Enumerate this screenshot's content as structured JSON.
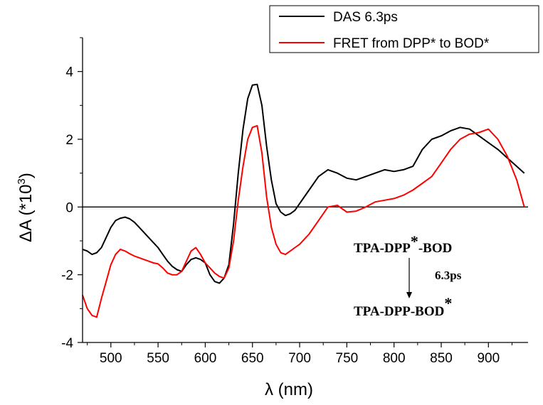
{
  "chart_data": {
    "type": "line",
    "title": "",
    "xlabel": "λ (nm)",
    "ylabel_main": "ΔA (*10",
    "ylabel_sup": "3",
    "ylabel_tail": ")",
    "xlim": [
      470,
      942
    ],
    "ylim": [
      -4,
      5
    ],
    "xticks": [
      500,
      550,
      600,
      650,
      700,
      750,
      800,
      850,
      900
    ],
    "yticks": [
      -4,
      -2,
      0,
      2,
      4
    ],
    "zero_line": true,
    "legend_position": "top-right",
    "series": [
      {
        "name": "DAS 6.3ps",
        "color": "#000000",
        "x": [
          470,
          475,
          480,
          485,
          490,
          495,
          500,
          505,
          510,
          515,
          520,
          525,
          530,
          535,
          540,
          545,
          550,
          555,
          560,
          565,
          570,
          575,
          580,
          585,
          590,
          595,
          600,
          605,
          610,
          615,
          620,
          625,
          630,
          635,
          640,
          645,
          650,
          655,
          660,
          665,
          670,
          675,
          680,
          685,
          690,
          695,
          700,
          710,
          720,
          730,
          740,
          750,
          760,
          770,
          780,
          790,
          800,
          810,
          820,
          830,
          840,
          850,
          860,
          870,
          880,
          890,
          900,
          910,
          920,
          930,
          938
        ],
        "y": [
          -1.25,
          -1.3,
          -1.4,
          -1.35,
          -1.2,
          -0.9,
          -0.6,
          -0.4,
          -0.33,
          -0.3,
          -0.35,
          -0.45,
          -0.6,
          -0.75,
          -0.9,
          -1.05,
          -1.2,
          -1.4,
          -1.6,
          -1.75,
          -1.85,
          -1.9,
          -1.7,
          -1.55,
          -1.5,
          -1.55,
          -1.65,
          -2.0,
          -2.2,
          -2.25,
          -2.1,
          -1.7,
          -0.5,
          1.0,
          2.3,
          3.2,
          3.6,
          3.62,
          3.0,
          1.8,
          0.8,
          0.1,
          -0.15,
          -0.25,
          -0.2,
          -0.1,
          0.1,
          0.5,
          0.9,
          1.1,
          1.0,
          0.85,
          0.8,
          0.9,
          1.0,
          1.1,
          1.05,
          1.1,
          1.2,
          1.7,
          2.0,
          2.1,
          2.25,
          2.35,
          2.3,
          2.1,
          1.9,
          1.7,
          1.45,
          1.2,
          1.0
        ]
      },
      {
        "name": "FRET from DPP* to BOD*",
        "color": "#ff0000",
        "x": [
          470,
          475,
          480,
          485,
          490,
          495,
          500,
          505,
          510,
          515,
          520,
          525,
          530,
          535,
          540,
          545,
          550,
          555,
          560,
          565,
          570,
          575,
          580,
          585,
          590,
          595,
          600,
          605,
          610,
          615,
          620,
          625,
          630,
          635,
          640,
          645,
          650,
          655,
          660,
          665,
          670,
          675,
          680,
          685,
          690,
          695,
          700,
          710,
          720,
          730,
          740,
          750,
          760,
          770,
          780,
          790,
          800,
          810,
          820,
          830,
          840,
          850,
          860,
          870,
          880,
          890,
          900,
          910,
          920,
          930,
          938
        ],
        "y": [
          -2.6,
          -3.0,
          -3.2,
          -3.25,
          -2.7,
          -2.2,
          -1.7,
          -1.4,
          -1.25,
          -1.3,
          -1.38,
          -1.45,
          -1.5,
          -1.55,
          -1.6,
          -1.65,
          -1.68,
          -1.8,
          -1.95,
          -2.0,
          -2.0,
          -1.9,
          -1.6,
          -1.3,
          -1.2,
          -1.4,
          -1.65,
          -1.8,
          -1.95,
          -2.05,
          -2.1,
          -1.8,
          -1.0,
          0.2,
          1.2,
          2.0,
          2.35,
          2.4,
          1.6,
          0.3,
          -0.6,
          -1.1,
          -1.35,
          -1.4,
          -1.3,
          -1.2,
          -1.1,
          -0.8,
          -0.4,
          0.0,
          0.05,
          -0.15,
          -0.12,
          0.0,
          0.15,
          0.2,
          0.25,
          0.35,
          0.5,
          0.7,
          0.9,
          1.3,
          1.7,
          2.0,
          2.15,
          2.2,
          2.3,
          2.0,
          1.5,
          0.8,
          0.0
        ]
      }
    ],
    "annotation": {
      "line1_prefix": "TPA-DPP",
      "line1_star": "*",
      "line1_suffix": "-BOD",
      "time_label": "6.3ps",
      "line2_prefix": "TPA-DPP-BOD",
      "line2_star": "*"
    }
  }
}
